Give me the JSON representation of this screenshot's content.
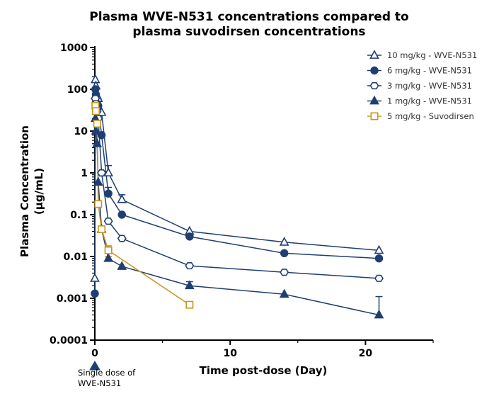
{
  "chart_data": {
    "type": "line",
    "title_lines": [
      "Plasma WVE-N531 concentrations compared to",
      "plasma suvodirsen concentrations"
    ],
    "xlabel": "Time post-dose (Day)",
    "ylabel_lines": [
      "Plasma Concentration",
      "(µg/mL)"
    ],
    "xlim": [
      0,
      25
    ],
    "ylim": [
      0.0001,
      1000
    ],
    "yscale": "log",
    "x_ticks": [
      0,
      10,
      20
    ],
    "y_ticks": [
      {
        "value": 0.0001,
        "label": "0.0001"
      },
      {
        "value": 0.001,
        "label": "0.001"
      },
      {
        "value": 0.01,
        "label": "0.01"
      },
      {
        "value": 0.1,
        "label": "0.1"
      },
      {
        "value": 1,
        "label": "1"
      },
      {
        "value": 10,
        "label": "10"
      },
      {
        "value": 100,
        "label": "100"
      },
      {
        "value": 1000,
        "label": "1000"
      }
    ],
    "legend_position": "top-right",
    "series": [
      {
        "name": "10 mg/kg - WVE-N531",
        "marker": "triangle-open",
        "color": "#1f3f73",
        "x": [
          0,
          0.04,
          0.08,
          0.17,
          0.25,
          0.5,
          1,
          2,
          7,
          14,
          21
        ],
        "y": [
          0.003,
          170,
          120,
          70,
          60,
          28,
          1.0,
          0.23,
          0.04,
          0.022,
          0.014
        ]
      },
      {
        "name": "6 mg/kg - WVE-N531",
        "marker": "circle-filled",
        "color": "#1f3f73",
        "x": [
          0,
          0.04,
          0.08,
          0.17,
          0.25,
          0.5,
          1,
          2,
          7,
          14,
          21
        ],
        "y": [
          0.0013,
          100,
          75,
          45,
          40,
          8,
          0.32,
          0.1,
          0.03,
          0.012,
          0.009
        ]
      },
      {
        "name": "3 mg/kg - WVE-N531",
        "marker": "hexagon-open",
        "color": "#1f3f73",
        "x": [
          0.04,
          0.08,
          0.17,
          0.25,
          0.5,
          1,
          2,
          7,
          14,
          21
        ],
        "y": [
          60,
          45,
          30,
          20,
          1.0,
          0.07,
          0.027,
          0.006,
          0.0042,
          0.003
        ]
      },
      {
        "name": "1 mg/kg - WVE-N531",
        "marker": "triangle-filled",
        "color": "#1f3f73",
        "x": [
          0.04,
          0.08,
          0.17,
          0.25,
          0.5,
          1,
          2,
          7,
          14,
          21
        ],
        "y": [
          20,
          10,
          5,
          0.6,
          0.045,
          0.009,
          0.0058,
          0.002,
          0.00125,
          0.0004
        ]
      },
      {
        "name": "5 mg/kg - Suvodirsen",
        "marker": "square-open",
        "color": "#c8951e",
        "x": [
          0.04,
          0.08,
          0.17,
          0.25,
          0.5,
          1,
          7
        ],
        "y": [
          40,
          30,
          15,
          0.18,
          0.045,
          0.014,
          0.0007
        ]
      }
    ],
    "error_bars": [
      {
        "series": 0,
        "x": 1,
        "y_high": 1.5
      },
      {
        "series": 0,
        "x": 2,
        "y_high": 0.3
      },
      {
        "series": 1,
        "x": 1,
        "y_high": 0.45
      },
      {
        "series": 3,
        "x": 7,
        "y_high": 0.0025
      },
      {
        "series": 3,
        "x": 21,
        "y_high": 0.0011
      },
      {
        "series": 4,
        "x": 1,
        "y_high": 0.018
      },
      {
        "series": 4,
        "x": 1,
        "y_low": 0.01
      }
    ],
    "annotation": {
      "lines": [
        "Single dose of",
        "WVE-N531"
      ],
      "x": 0
    }
  }
}
